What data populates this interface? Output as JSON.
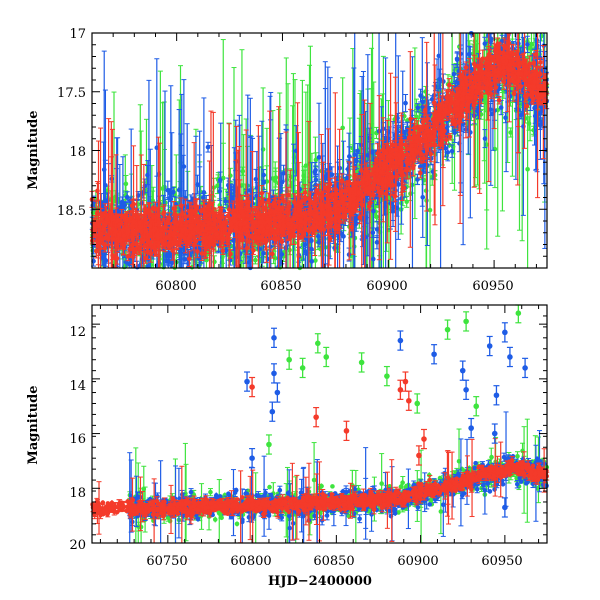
{
  "figure": {
    "xlabel": "HJD−2400000"
  },
  "chart_data": [
    {
      "type": "scatter",
      "title": "",
      "xlabel": "",
      "ylabel": "Magnitude",
      "xlim": [
        60760,
        60975
      ],
      "ylim": [
        19.0,
        17.0
      ],
      "yinverted": true,
      "xticks": [
        60800,
        60850,
        60900,
        60950
      ],
      "xtick_labels": [
        "60800",
        "60850",
        "60900",
        "60950"
      ],
      "yticks": [
        17,
        17.5,
        18,
        18.5
      ],
      "ytick_labels": [
        "17",
        "17.5",
        "18",
        "18.5"
      ],
      "grid": false,
      "legend": "none",
      "series": [
        {
          "name": "green",
          "color": "#3ee43e"
        },
        {
          "name": "blue",
          "color": "#1e5ce6"
        },
        {
          "name": "red",
          "color": "#f43a2a"
        }
      ],
      "trend": [
        [
          60760,
          18.68
        ],
        [
          60800,
          18.68
        ],
        [
          60850,
          18.6
        ],
        [
          60880,
          18.45
        ],
        [
          60900,
          18.15
        ],
        [
          60920,
          17.85
        ],
        [
          60940,
          17.45
        ],
        [
          60955,
          17.25
        ],
        [
          60975,
          17.5
        ]
      ]
    },
    {
      "type": "scatter",
      "title": "",
      "xlabel": "HJD−2400000",
      "ylabel": "Magnitude",
      "xlim": [
        60705,
        60975
      ],
      "ylim": [
        20,
        11.3
      ],
      "yinverted": true,
      "xticks": [
        60750,
        60800,
        60850,
        60900,
        60950
      ],
      "xtick_labels": [
        "60750",
        "60800",
        "60850",
        "60900",
        "60950"
      ],
      "yticks": [
        12,
        14,
        16,
        18,
        20
      ],
      "ytick_labels": [
        "12",
        "14",
        "16",
        "18",
        "20"
      ],
      "grid": false,
      "legend": "none",
      "series": [
        {
          "name": "green",
          "color": "#3ee43e"
        },
        {
          "name": "blue",
          "color": "#1e5ce6"
        },
        {
          "name": "red",
          "color": "#f43a2a"
        }
      ],
      "trend": [
        [
          60705,
          18.75
        ],
        [
          60725,
          18.75
        ],
        [
          60760,
          18.7
        ],
        [
          60850,
          18.55
        ],
        [
          60890,
          18.35
        ],
        [
          60910,
          18.05
        ],
        [
          60935,
          17.55
        ],
        [
          60955,
          17.25
        ],
        [
          60975,
          17.5
        ]
      ],
      "outliers": [
        {
          "series": "blue",
          "x": 60813,
          "y": 12.5
        },
        {
          "series": "blue",
          "x": 60813,
          "y": 13.8
        },
        {
          "series": "blue",
          "x": 60815,
          "y": 14.5
        },
        {
          "series": "blue",
          "x": 60812,
          "y": 15.2
        },
        {
          "series": "blue",
          "x": 60797,
          "y": 14.1
        },
        {
          "series": "blue",
          "x": 60800,
          "y": 16.9
        },
        {
          "series": "blue",
          "x": 60888,
          "y": 12.6
        },
        {
          "series": "blue",
          "x": 60908,
          "y": 13.1
        },
        {
          "series": "blue",
          "x": 60925,
          "y": 13.7
        },
        {
          "series": "blue",
          "x": 60927,
          "y": 14.4
        },
        {
          "series": "blue",
          "x": 60941,
          "y": 12.8
        },
        {
          "series": "blue",
          "x": 60945,
          "y": 14.6
        },
        {
          "series": "blue",
          "x": 60950,
          "y": 12.3
        },
        {
          "series": "blue",
          "x": 60953,
          "y": 13.2
        },
        {
          "series": "blue",
          "x": 60962,
          "y": 13.6
        },
        {
          "series": "blue",
          "x": 60930,
          "y": 15.8
        },
        {
          "series": "blue",
          "x": 60944,
          "y": 16.0
        },
        {
          "series": "blue",
          "x": 60950,
          "y": 18.7
        },
        {
          "series": "green",
          "x": 60822,
          "y": 13.3
        },
        {
          "series": "green",
          "x": 60830,
          "y": 13.6
        },
        {
          "series": "green",
          "x": 60839,
          "y": 12.7
        },
        {
          "series": "green",
          "x": 60844,
          "y": 13.2
        },
        {
          "series": "green",
          "x": 60865,
          "y": 13.4
        },
        {
          "series": "green",
          "x": 60880,
          "y": 13.9
        },
        {
          "series": "green",
          "x": 60898,
          "y": 14.9
        },
        {
          "series": "green",
          "x": 60916,
          "y": 12.2
        },
        {
          "series": "green",
          "x": 60927,
          "y": 11.9
        },
        {
          "series": "green",
          "x": 60958,
          "y": 11.6
        },
        {
          "series": "green",
          "x": 60933,
          "y": 15.0
        },
        {
          "series": "green",
          "x": 60810,
          "y": 16.4
        },
        {
          "series": "red",
          "x": 60800,
          "y": 14.3
        },
        {
          "series": "red",
          "x": 60838,
          "y": 15.4
        },
        {
          "series": "red",
          "x": 60856,
          "y": 15.9
        },
        {
          "series": "red",
          "x": 60888,
          "y": 14.4
        },
        {
          "series": "red",
          "x": 60891,
          "y": 14.1
        },
        {
          "series": "red",
          "x": 60893,
          "y": 14.8
        },
        {
          "series": "red",
          "x": 60902,
          "y": 16.2
        },
        {
          "series": "red",
          "x": 60899,
          "y": 16.8
        }
      ]
    }
  ]
}
